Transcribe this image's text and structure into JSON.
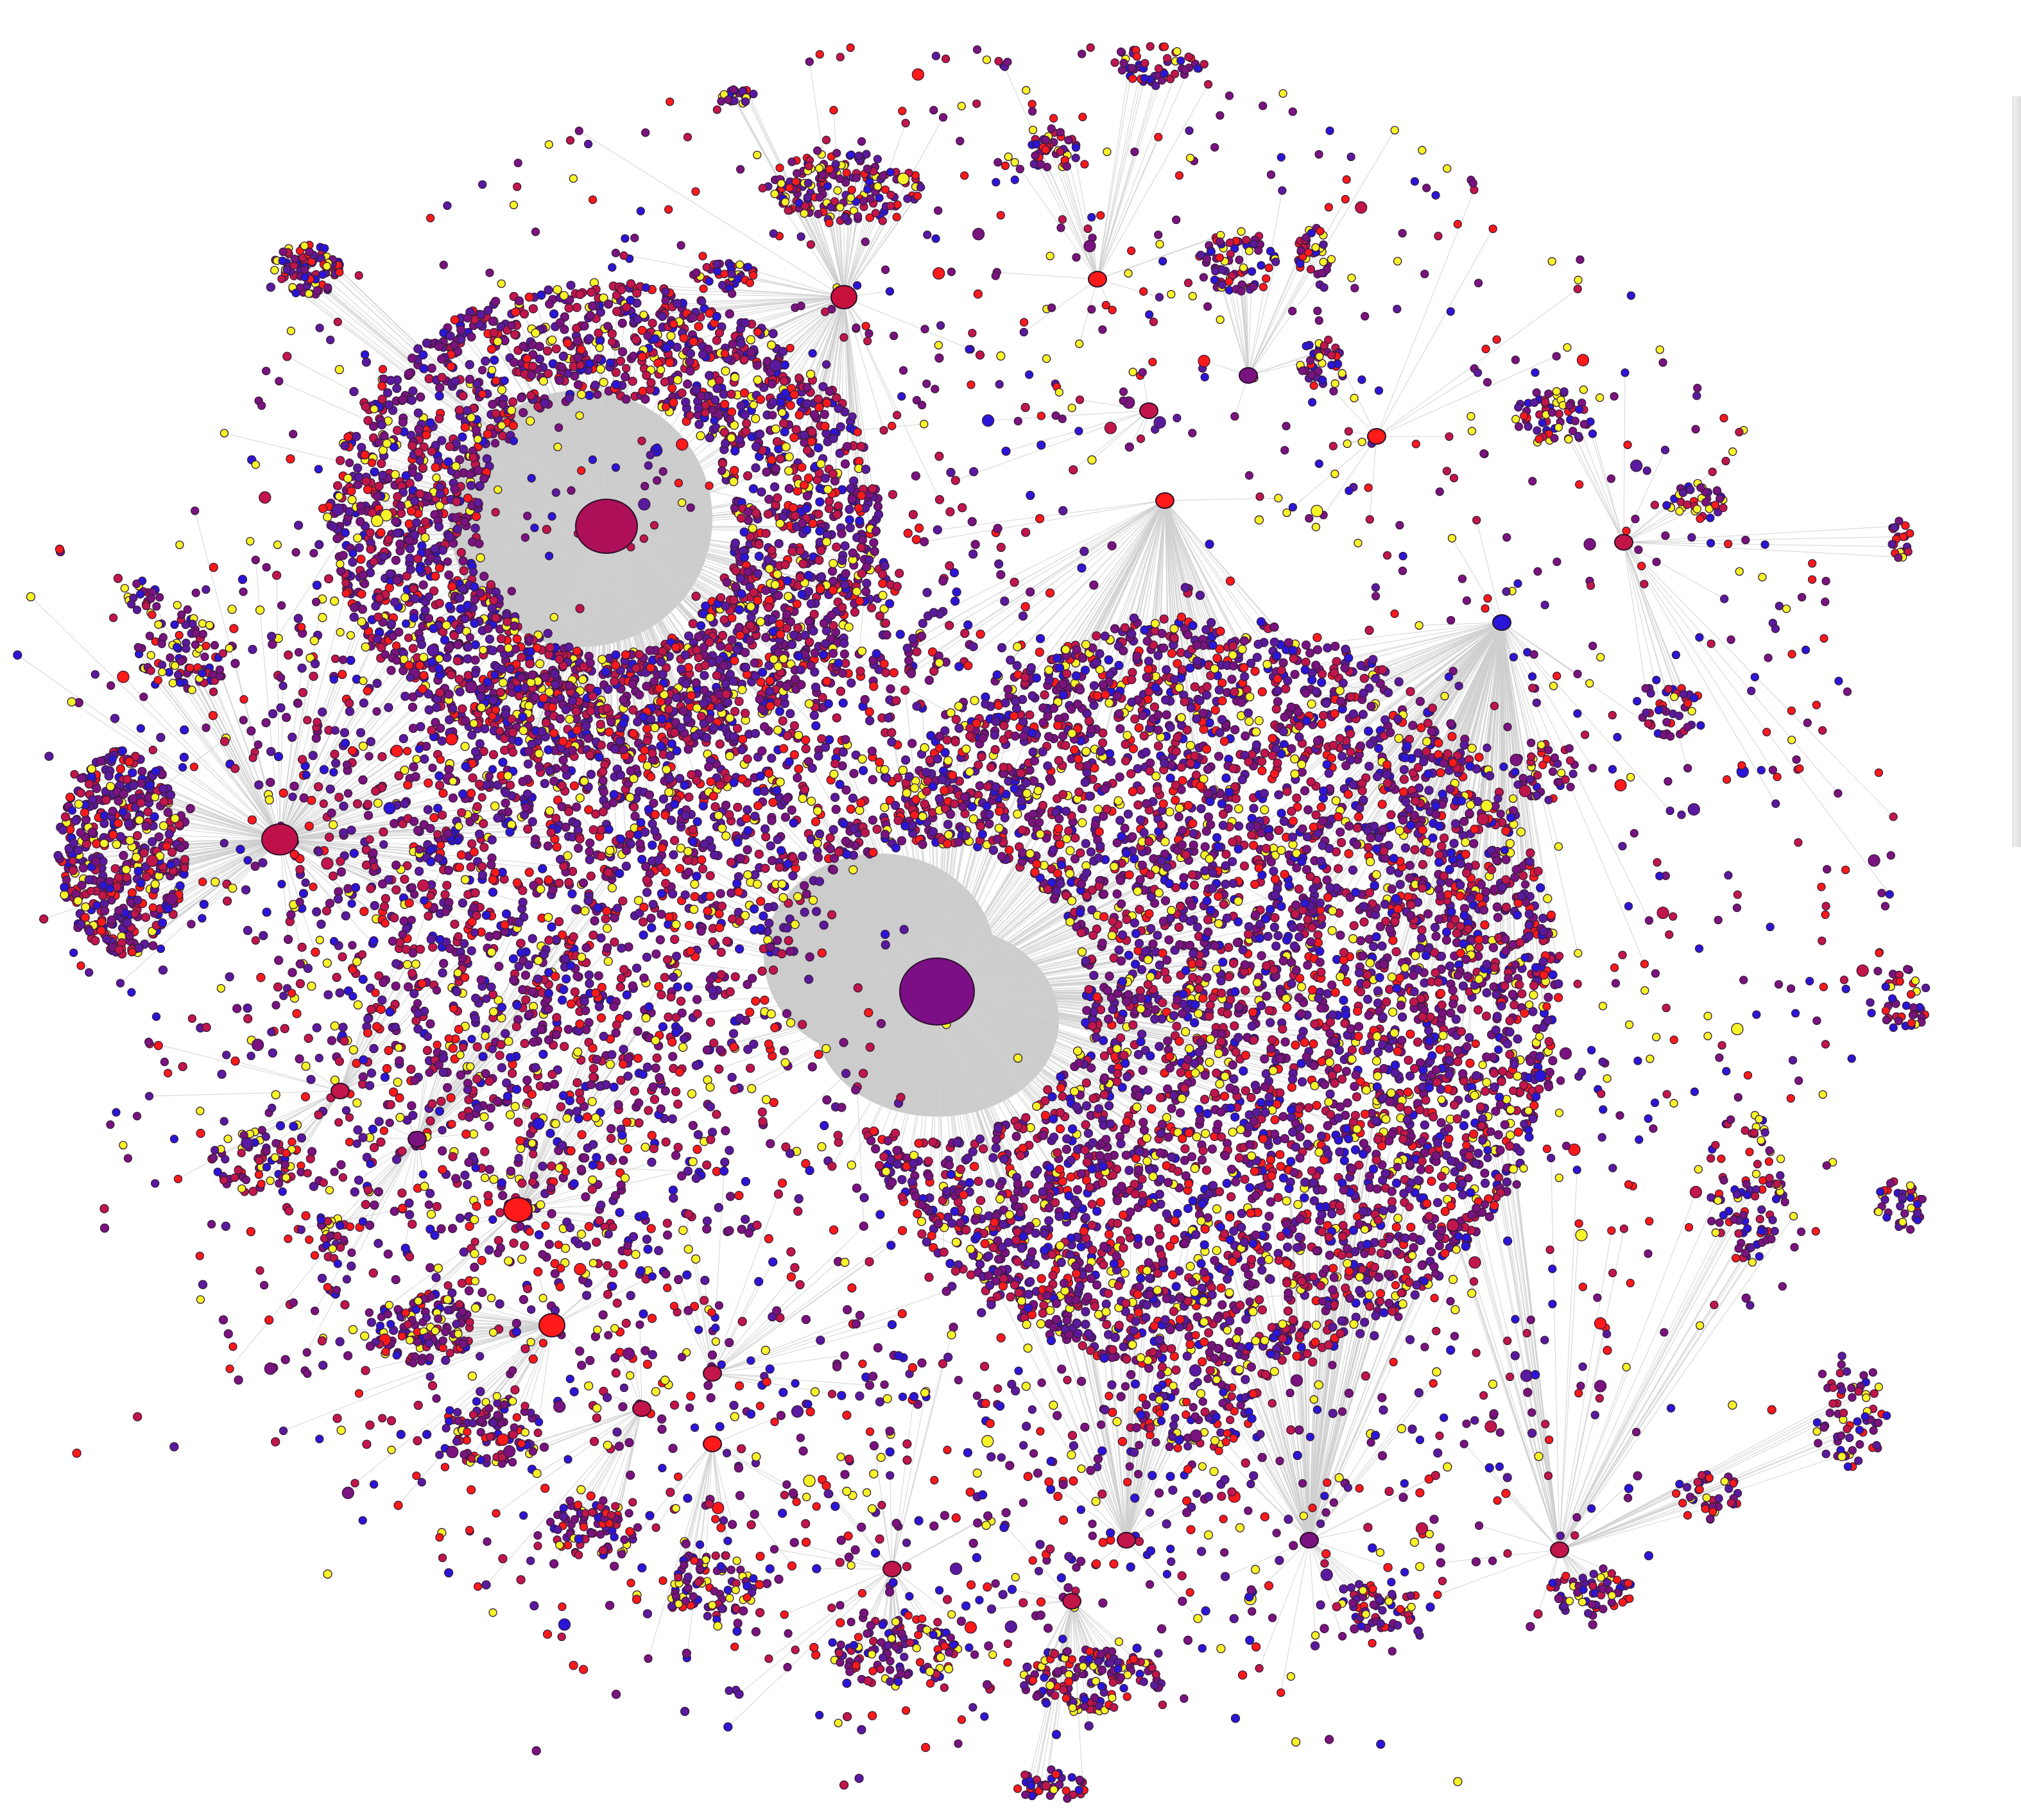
{
  "graph": {
    "node_colors": {
      "red": "#ff1a1a",
      "crimson": "#c2164a",
      "purple": "#7a1380",
      "violet": "#5a1aa0",
      "blue": "#2a16d8",
      "yellow": "#f5f527"
    },
    "edge_color": "#cfcfcf",
    "fan_color": "#cccccc",
    "background": "#ffffff",
    "hubs": [
      {
        "name": "hub-upper-left",
        "color": "#ad0f58"
      },
      {
        "name": "hub-center",
        "color": "#7d0f86"
      },
      {
        "name": "hub-left",
        "color": "#c0104a"
      },
      {
        "name": "hub-top",
        "color": "#c8103e"
      },
      {
        "name": "hub-red-1",
        "color": "#ff1a1a"
      },
      {
        "name": "hub-red-2",
        "color": "#ff1a1a"
      }
    ]
  }
}
